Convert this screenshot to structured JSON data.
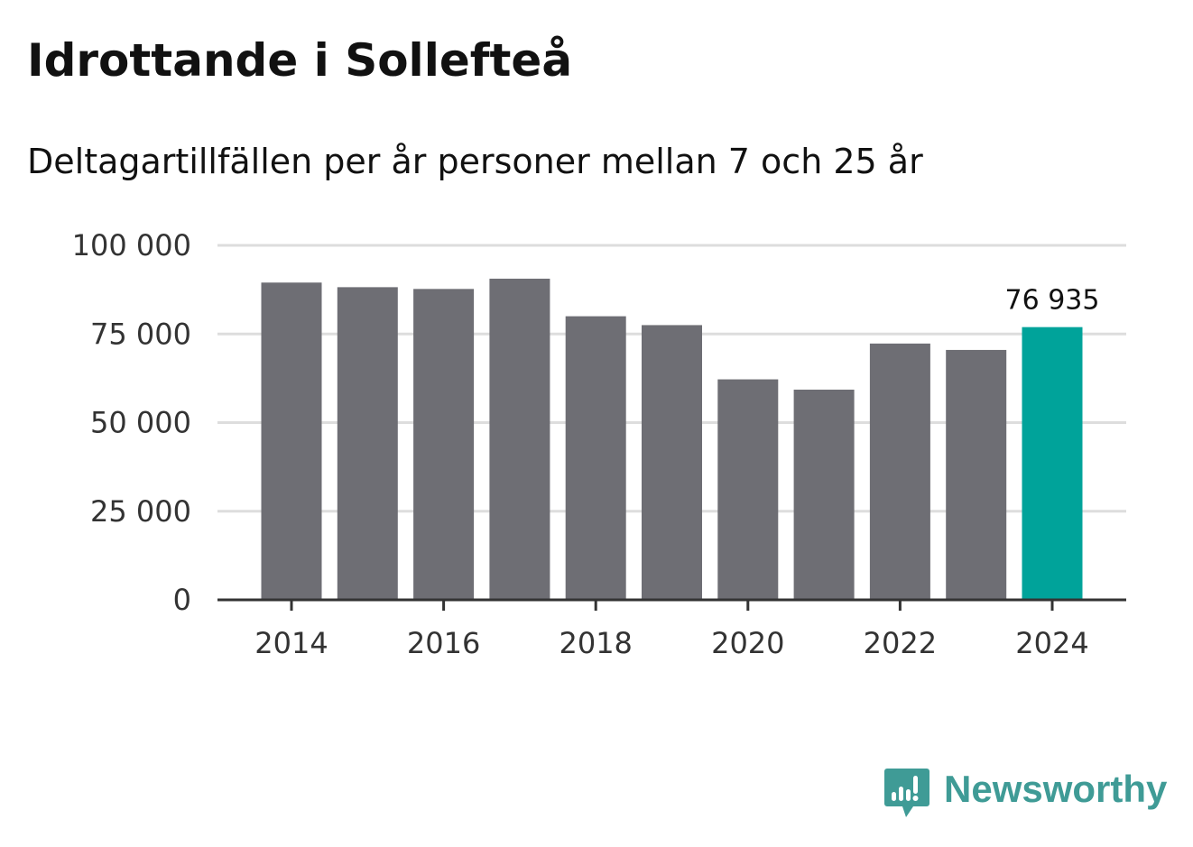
{
  "title": "Idrottande i Sollefteå",
  "subtitle": "Deltagartillfällen per år personer mellan 7 och 25 år",
  "brand": {
    "name": "Newsworthy",
    "icon": "chart-bubble-icon",
    "color": "#3f9b96"
  },
  "colors": {
    "bar": "#6e6e74",
    "highlight": "#00a39a",
    "grid": "#dddddd",
    "axis": "#333333"
  },
  "chart_data": {
    "type": "bar",
    "title": "Idrottande i Sollefteå",
    "subtitle": "Deltagartillfällen per år personer mellan 7 och 25 år",
    "xlabel": "",
    "ylabel": "",
    "categories": [
      "2014",
      "2015",
      "2016",
      "2017",
      "2018",
      "2019",
      "2020",
      "2021",
      "2022",
      "2023",
      "2024"
    ],
    "values": [
      89500,
      88200,
      87700,
      90600,
      80000,
      77500,
      62200,
      59300,
      72300,
      70500,
      76935
    ],
    "highlight_index": 10,
    "highlight_label": "76 935",
    "ylim": [
      0,
      100000
    ],
    "yticks": [
      0,
      25000,
      50000,
      75000,
      100000
    ],
    "ytick_labels": [
      "0",
      "25 000",
      "50 000",
      "75 000",
      "100 000"
    ],
    "xticks": [
      "2014",
      "2016",
      "2018",
      "2020",
      "2022",
      "2024"
    ],
    "grid": true,
    "legend": "none"
  }
}
